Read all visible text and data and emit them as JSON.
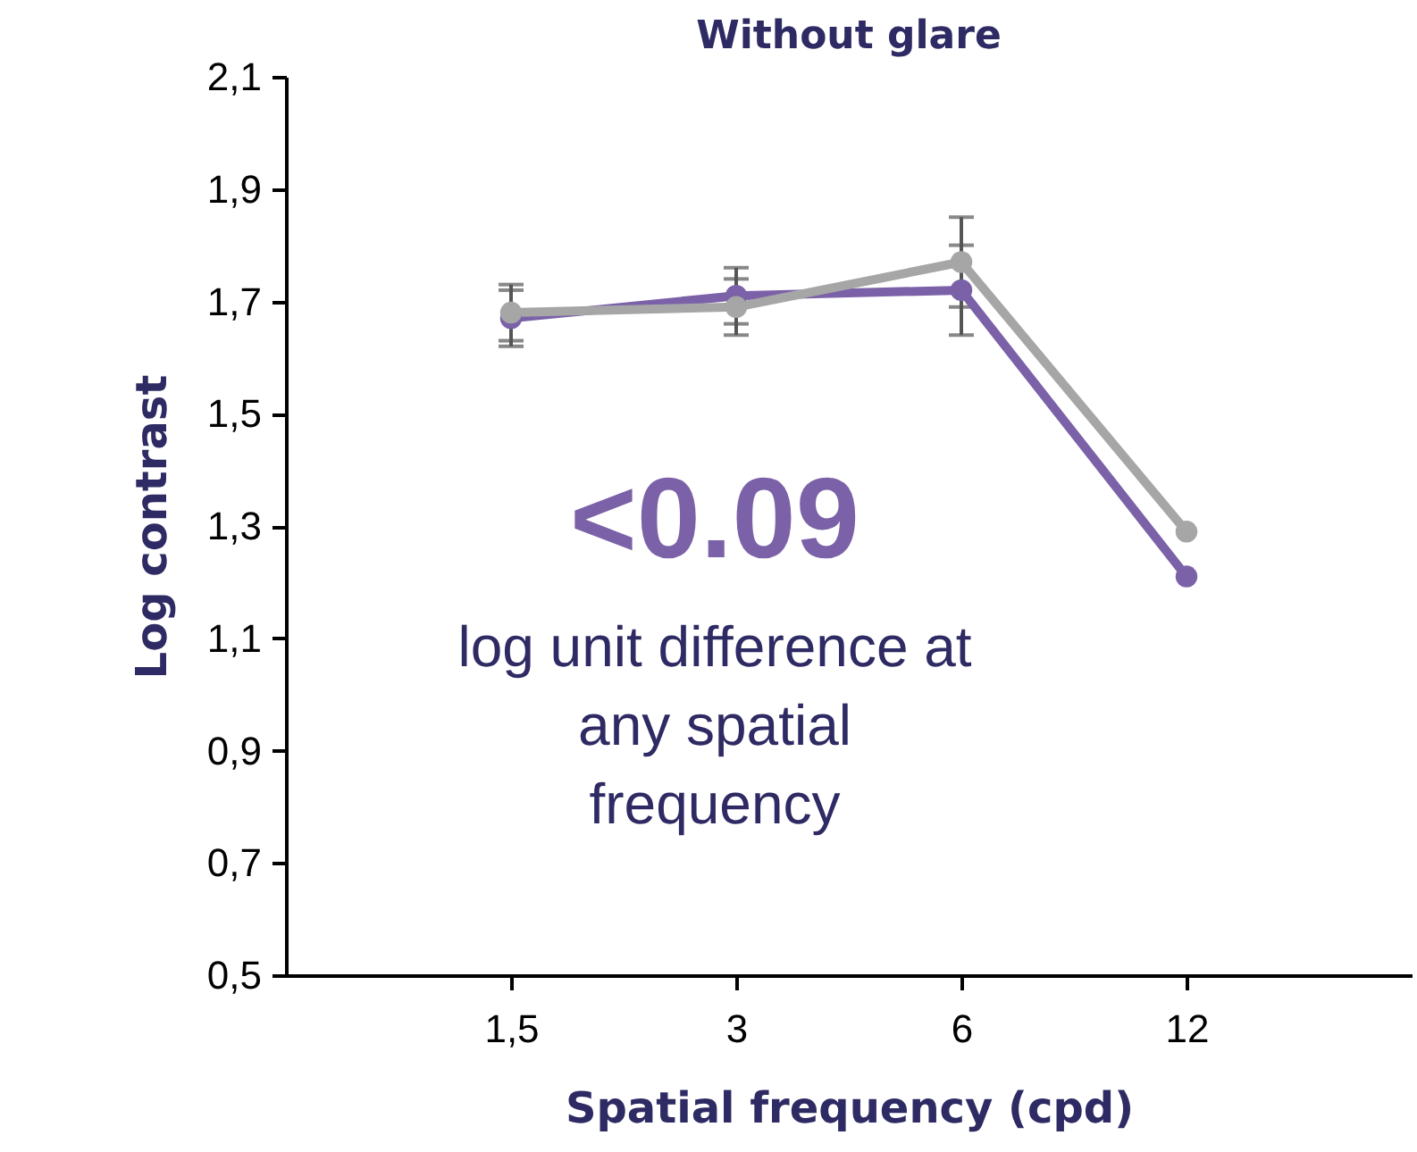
{
  "chart_data": {
    "type": "line",
    "title": "Without glare",
    "xlabel": "Spatial frequency (cpd)",
    "ylabel": "Log contrast",
    "categories": [
      "1,5",
      "3",
      "6",
      "12"
    ],
    "series": [
      {
        "color": "#7b62a8",
        "values": [
          1.67,
          1.71,
          1.72,
          1.21
        ],
        "errors": [
          0.05,
          0.05,
          0.08,
          null
        ]
      },
      {
        "color": "#a6a6a6",
        "values": [
          1.68,
          1.69,
          1.77,
          1.29
        ],
        "errors": [
          0.05,
          0.05,
          0.08,
          null
        ]
      }
    ],
    "ylim": [
      0.5,
      2.1
    ],
    "yticks": [
      {
        "value": 0.5,
        "label": "0,5"
      },
      {
        "value": 0.7,
        "label": "0,7"
      },
      {
        "value": 0.9,
        "label": "0,9"
      },
      {
        "value": 1.1,
        "label": "1,1"
      },
      {
        "value": 1.3,
        "label": "1,3"
      },
      {
        "value": 1.5,
        "label": "1,5"
      },
      {
        "value": 1.7,
        "label": "1,7"
      },
      {
        "value": 1.9,
        "label": "1,9"
      },
      {
        "value": 2.1,
        "label": "2,1"
      }
    ],
    "annotations": [
      "<0.09",
      "log unit difference at\nany spatial\nfrequency"
    ],
    "marker": "circle",
    "line_style": "solid",
    "grid": false
  }
}
